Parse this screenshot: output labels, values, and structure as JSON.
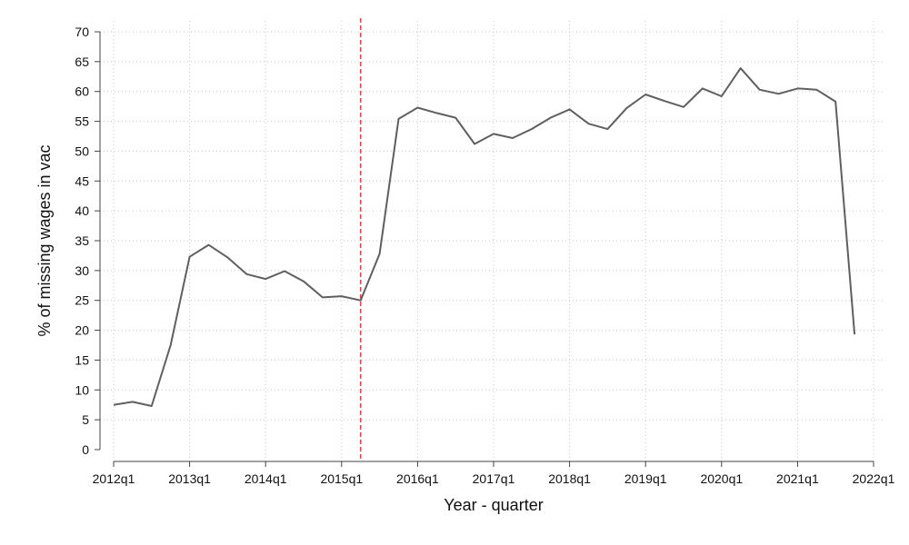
{
  "chart_data": {
    "type": "line",
    "xlabel": "Year - quarter",
    "ylabel": "% of missing wages in vac",
    "xlim": [
      "2012q1",
      "2022q1"
    ],
    "ylim": [
      0,
      70
    ],
    "x_ticks": [
      "2012q1",
      "2013q1",
      "2014q1",
      "2015q1",
      "2016q1",
      "2017q1",
      "2018q1",
      "2019q1",
      "2020q1",
      "2021q1",
      "2022q1"
    ],
    "y_ticks": [
      0,
      5,
      10,
      15,
      20,
      25,
      30,
      35,
      40,
      45,
      50,
      55,
      60,
      65,
      70
    ],
    "grid": true,
    "vline": {
      "x": "2015q2",
      "style": "dashed",
      "color": "#e8424a"
    },
    "series": [
      {
        "color": "#5f5f5f",
        "x": [
          "2012q1",
          "2012q2",
          "2012q3",
          "2012q4",
          "2013q1",
          "2013q2",
          "2013q3",
          "2013q4",
          "2014q1",
          "2014q2",
          "2014q3",
          "2014q4",
          "2015q1",
          "2015q2",
          "2015q3",
          "2015q4",
          "2016q1",
          "2016q2",
          "2016q3",
          "2016q4",
          "2017q1",
          "2017q2",
          "2017q3",
          "2017q4",
          "2018q1",
          "2018q2",
          "2018q3",
          "2018q4",
          "2019q1",
          "2019q2",
          "2019q3",
          "2019q4",
          "2020q1",
          "2020q2",
          "2020q3",
          "2020q4",
          "2021q1",
          "2021q2",
          "2021q3",
          "2021q4"
        ],
        "values": [
          7.5,
          8.0,
          7.3,
          17.5,
          32.3,
          34.3,
          32.2,
          29.4,
          28.6,
          29.9,
          28.2,
          25.5,
          25.7,
          25.0,
          32.8,
          55.4,
          57.3,
          56.4,
          55.6,
          51.2,
          52.9,
          52.2,
          53.7,
          55.6,
          57.0,
          54.6,
          53.7,
          57.2,
          59.5,
          58.4,
          57.4,
          60.5,
          59.2,
          63.9,
          60.3,
          59.6,
          60.5,
          60.3,
          58.3,
          19.3
        ]
      }
    ]
  }
}
